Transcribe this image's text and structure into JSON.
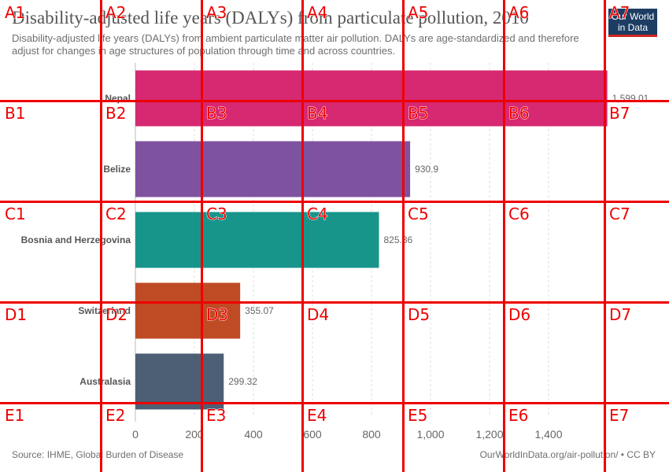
{
  "title": "Disability-adjusted life years (DALYs) from particulate pollution, 2010",
  "subtitle": "Disability-adjusted life years (DALYs) from ambient particulate matter air pollution. DALYs are age-standardized and therefore adjust for changes in age structures of population through time and across countries.",
  "logo": {
    "line1": "Our World",
    "line2": "in Data"
  },
  "footer": {
    "source": "Source: IHME, Global Burden of Disease",
    "url": "OurWorldInData.org/air-pollution/ • CC BY"
  },
  "chart_data": {
    "type": "bar",
    "orientation": "horizontal",
    "categories": [
      "Nepal",
      "Belize",
      "Bosnia and Herzegovina",
      "Switzerland",
      "Australasia"
    ],
    "values": [
      1599.01,
      930.9,
      825.36,
      355.07,
      299.32
    ],
    "value_labels": [
      "1,599.01",
      "930.9",
      "825.36",
      "355.07",
      "299.32"
    ],
    "colors": [
      "#d72872",
      "#7f52a0",
      "#17958b",
      "#bf4b25",
      "#4d5f75"
    ],
    "xlim": [
      0,
      1600
    ],
    "xticks": [
      0,
      200,
      400,
      600,
      800,
      1000,
      1200,
      1400
    ],
    "xtick_labels": [
      "0",
      "200",
      "400",
      "600",
      "800",
      "1,000",
      "1,200",
      "1,400"
    ],
    "grid": "vertical dashed"
  },
  "overlay": {
    "col_labels": [
      "1",
      "2",
      "3",
      "4",
      "5",
      "6",
      "7"
    ],
    "row_labels": [
      "A",
      "B",
      "C",
      "D",
      "E"
    ],
    "color": "#ee0000"
  }
}
